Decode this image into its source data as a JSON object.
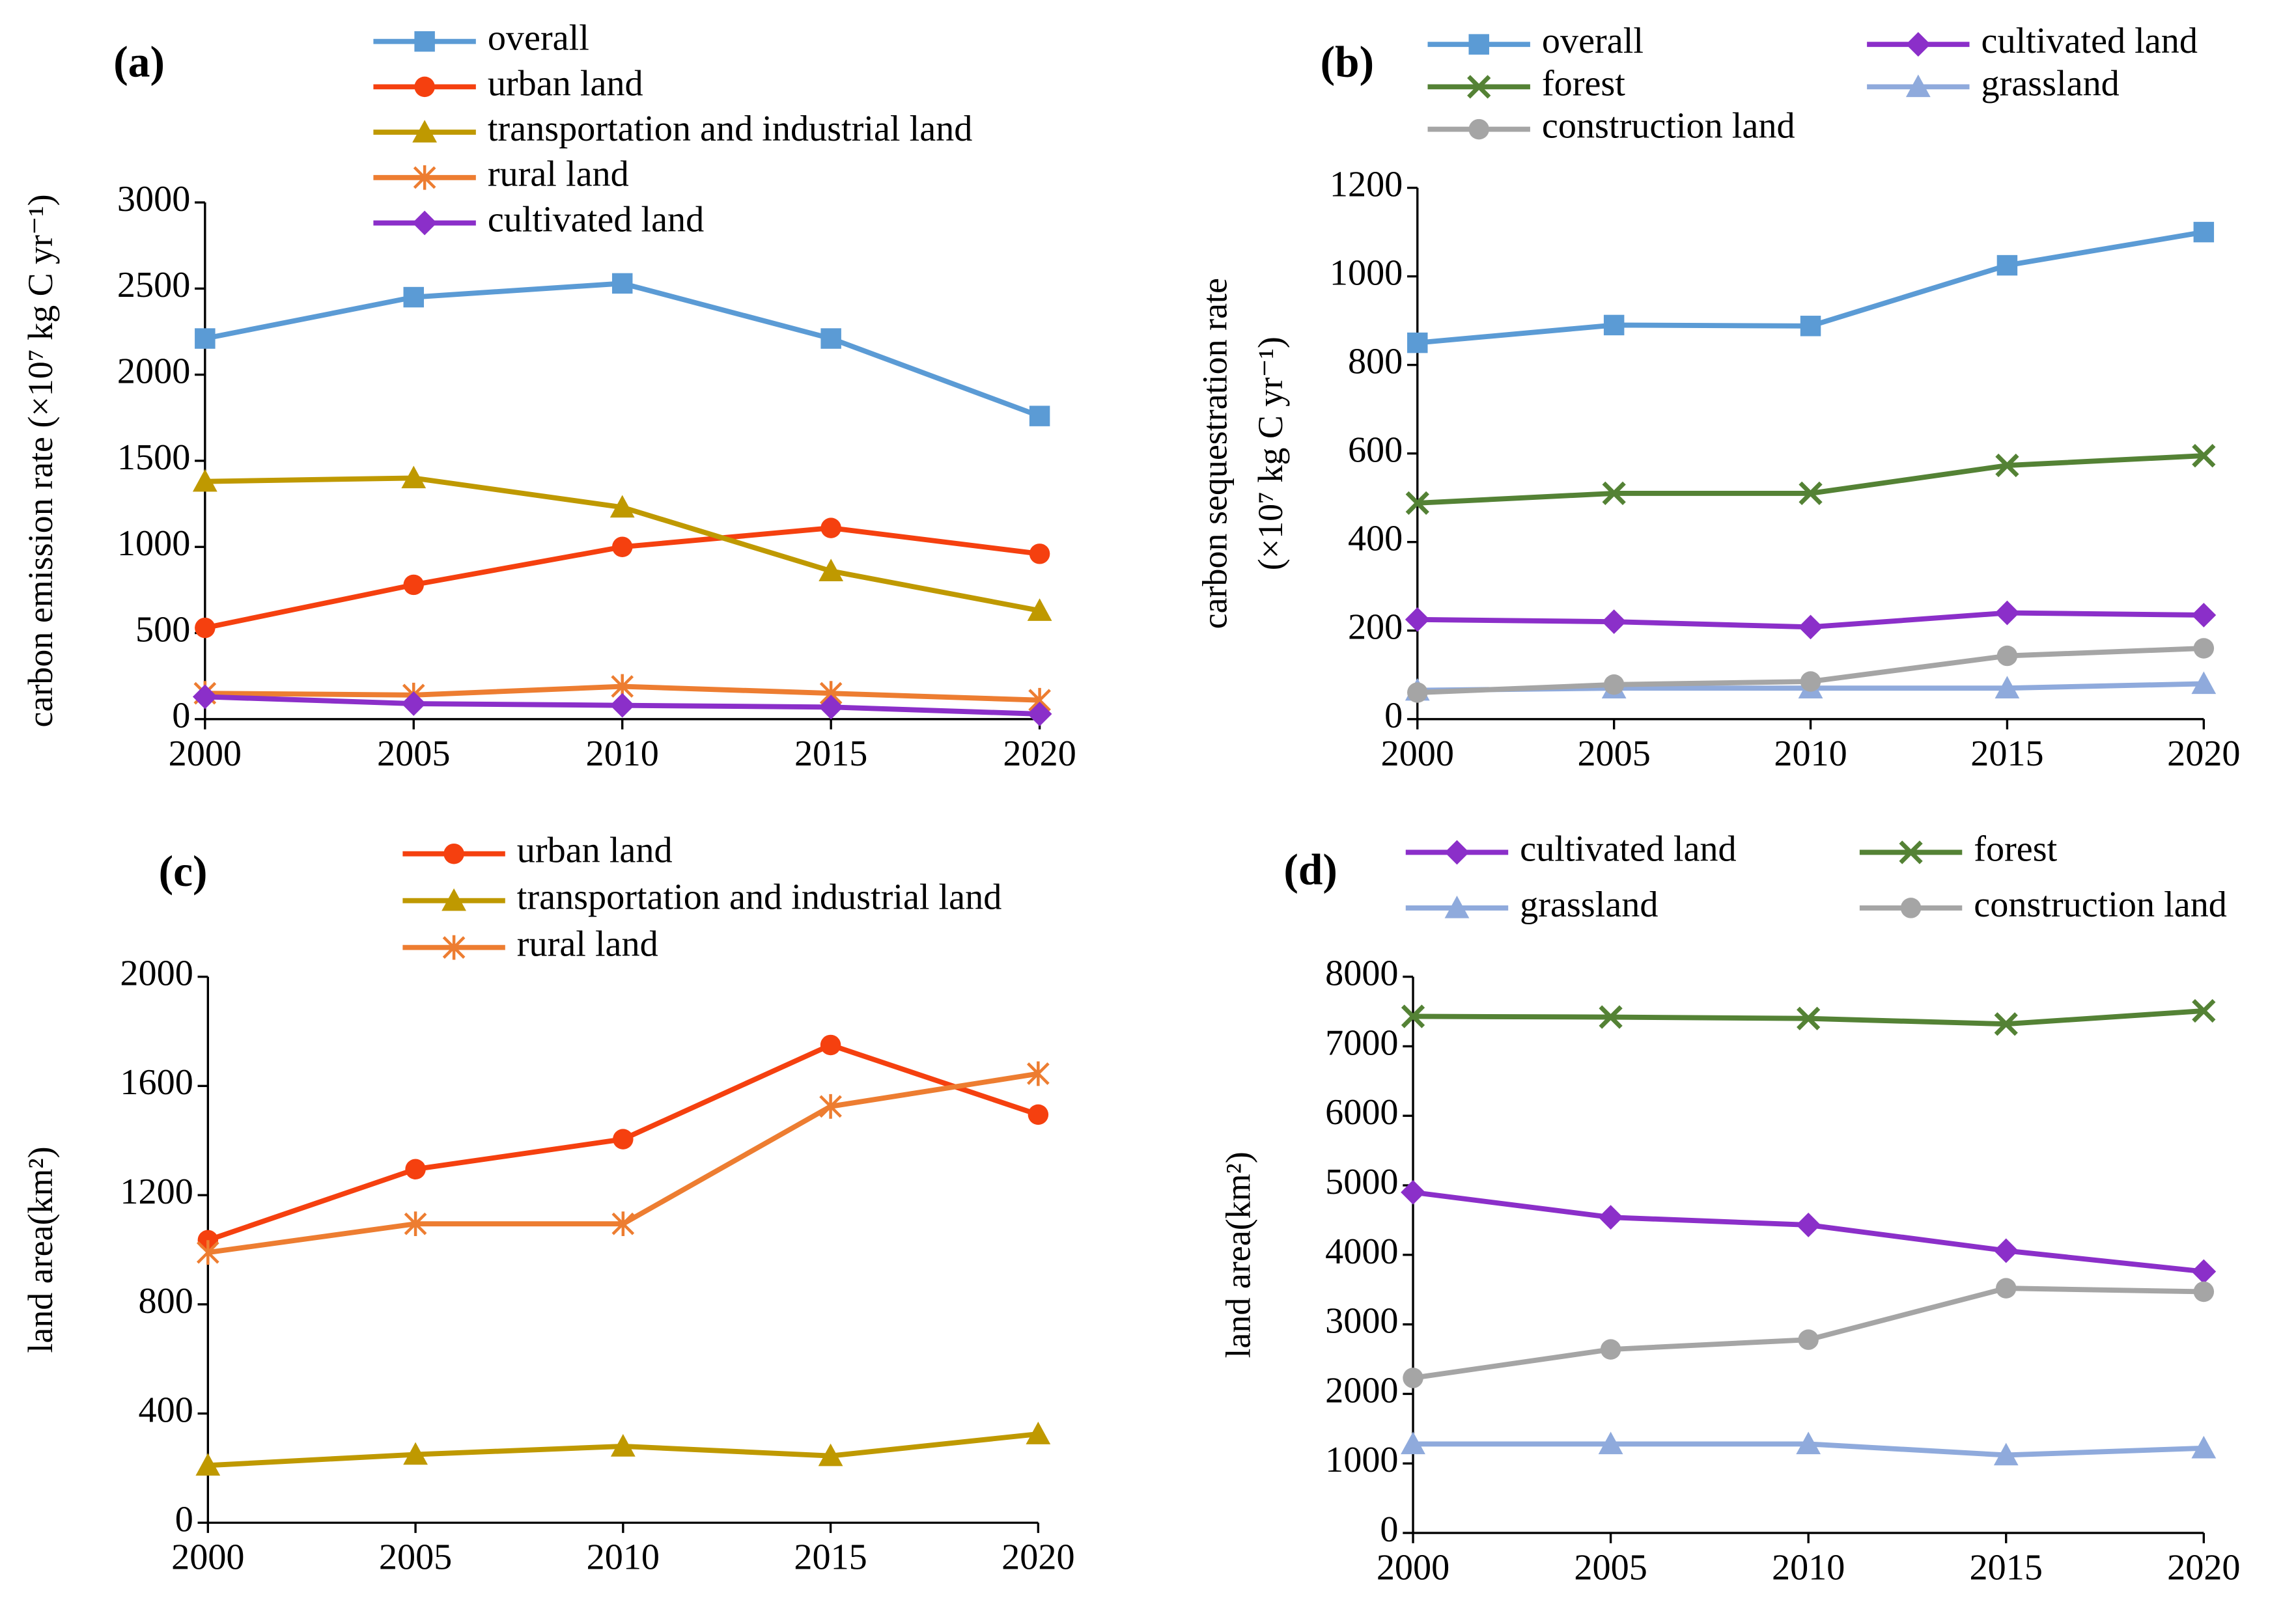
{
  "chart_data": [
    {
      "type": "line",
      "label": "(a)",
      "ylabel": [
        "carbon emission rate (×10⁷ kg C yr⁻¹)"
      ],
      "xlim": [
        2000,
        2020
      ],
      "xticks": [
        2000,
        2005,
        2010,
        2015,
        2020
      ],
      "ylim": [
        0,
        3000
      ],
      "yticks": [
        0,
        500,
        1000,
        1500,
        2000,
        2500,
        3000
      ],
      "x": [
        2000,
        2005,
        2010,
        2015,
        2020
      ],
      "series": [
        {
          "name": "overall",
          "color": "#5b9bd5",
          "marker": "square",
          "values": [
            2210,
            2450,
            2530,
            2210,
            1760
          ]
        },
        {
          "name": "urban land",
          "color": "#f5400f",
          "marker": "circle",
          "values": [
            530,
            780,
            1000,
            1110,
            960
          ]
        },
        {
          "name": "transportation and industrial land",
          "color": "#bf9900",
          "marker": "triangle",
          "values": [
            1380,
            1400,
            1230,
            860,
            630
          ]
        },
        {
          "name": "rural land",
          "color": "#ed7d31",
          "marker": "asterisk",
          "values": [
            150,
            140,
            190,
            150,
            110
          ]
        },
        {
          "name": "cultivated land",
          "color": "#8b2fc9",
          "marker": "diamond",
          "values": [
            130,
            90,
            80,
            70,
            30
          ]
        }
      ]
    },
    {
      "type": "line",
      "label": "(b)",
      "ylabel": [
        "carbon sequestration rate",
        "(×10⁷ kg C yr⁻¹)"
      ],
      "xlim": [
        2000,
        2020
      ],
      "xticks": [
        2000,
        2005,
        2010,
        2015,
        2020
      ],
      "ylim": [
        0,
        1200
      ],
      "yticks": [
        0,
        200,
        400,
        600,
        800,
        1000,
        1200
      ],
      "x": [
        2000,
        2005,
        2010,
        2015,
        2020
      ],
      "series": [
        {
          "name": "overall",
          "color": "#5b9bd5",
          "marker": "square",
          "values": [
            850,
            890,
            888,
            1025,
            1100
          ]
        },
        {
          "name": "cultivated land",
          "color": "#8b2fc9",
          "marker": "diamond",
          "values": [
            225,
            220,
            208,
            240,
            235
          ]
        },
        {
          "name": "forest",
          "color": "#548235",
          "marker": "x",
          "values": [
            488,
            510,
            510,
            573,
            595
          ]
        },
        {
          "name": "grassland",
          "color": "#8faadc",
          "marker": "triangle",
          "values": [
            65,
            70,
            70,
            70,
            80
          ]
        },
        {
          "name": "construction land",
          "color": "#a5a5a5",
          "marker": "circle",
          "values": [
            60,
            78,
            85,
            143,
            160
          ]
        }
      ]
    },
    {
      "type": "line",
      "label": "(c)",
      "ylabel": [
        "land area(km²)"
      ],
      "xlim": [
        2000,
        2020
      ],
      "xticks": [
        2000,
        2005,
        2010,
        2015,
        2020
      ],
      "ylim": [
        0,
        2000
      ],
      "yticks": [
        0,
        400,
        800,
        1200,
        1600,
        2000
      ],
      "x": [
        2000,
        2005,
        2010,
        2015,
        2020
      ],
      "series": [
        {
          "name": "urban land",
          "color": "#f5400f",
          "marker": "circle",
          "values": [
            1035,
            1295,
            1405,
            1750,
            1495
          ]
        },
        {
          "name": "transportation and industrial land",
          "color": "#bf9900",
          "marker": "triangle",
          "values": [
            210,
            250,
            280,
            245,
            325
          ]
        },
        {
          "name": "rural land",
          "color": "#ed7d31",
          "marker": "asterisk",
          "values": [
            990,
            1095,
            1095,
            1525,
            1645
          ]
        }
      ]
    },
    {
      "type": "line",
      "label": "(d)",
      "ylabel": [
        "land area(km²)"
      ],
      "xlim": [
        2000,
        2020
      ],
      "xticks": [
        2000,
        2005,
        2010,
        2015,
        2020
      ],
      "ylim": [
        0,
        8000
      ],
      "yticks": [
        0,
        1000,
        2000,
        3000,
        4000,
        5000,
        6000,
        7000,
        8000
      ],
      "x": [
        2000,
        2005,
        2010,
        2015,
        2020
      ],
      "series": [
        {
          "name": "cultivated land",
          "color": "#8b2fc9",
          "marker": "diamond",
          "values": [
            4900,
            4540,
            4430,
            4060,
            3760
          ]
        },
        {
          "name": "forest",
          "color": "#548235",
          "marker": "x",
          "values": [
            7430,
            7420,
            7400,
            7320,
            7510
          ]
        },
        {
          "name": "grassland",
          "color": "#8faadc",
          "marker": "triangle",
          "values": [
            1280,
            1280,
            1280,
            1120,
            1220
          ]
        },
        {
          "name": "construction land",
          "color": "#a5a5a5",
          "marker": "circle",
          "values": [
            2230,
            2640,
            2780,
            3520,
            3470
          ]
        }
      ]
    }
  ]
}
